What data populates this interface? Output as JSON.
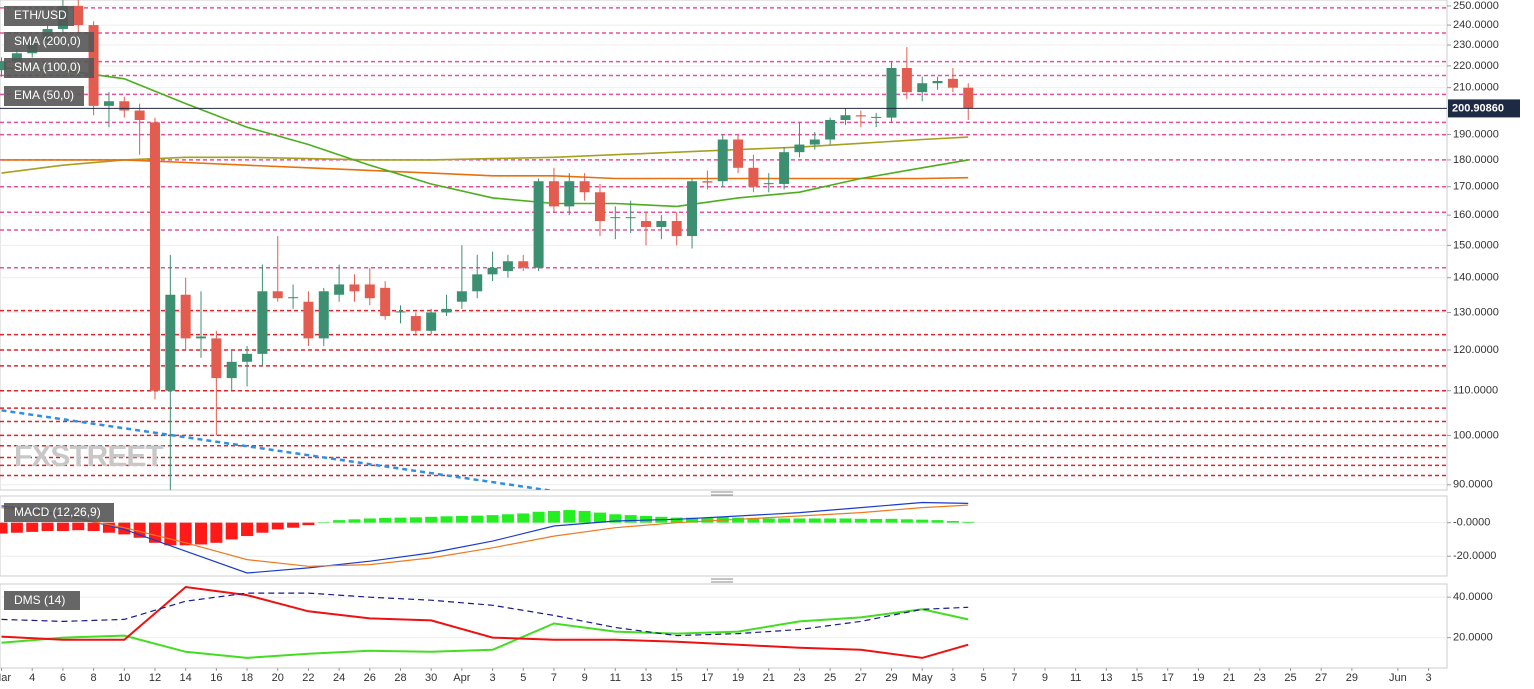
{
  "chart_data": [
    {
      "type": "candlestick",
      "title": "ETH/USD",
      "log_scale": true,
      "grid": true,
      "watermark": "FXSTREET",
      "xlim": [
        -0.1,
        94.2
      ],
      "ylim": [
        89,
        253.2
      ],
      "yticks": [
        {
          "value": 250,
          "label": "250.0000"
        },
        {
          "value": 240,
          "label": "240.0000"
        },
        {
          "value": 230,
          "label": "230.0000"
        },
        {
          "value": 220,
          "label": "220.0000"
        },
        {
          "value": 210,
          "label": "210.0000"
        },
        {
          "value": 190,
          "label": "190.0000"
        },
        {
          "value": 180,
          "label": "180.0000"
        },
        {
          "value": 170,
          "label": "170.0000"
        },
        {
          "value": 160,
          "label": "160.0000"
        },
        {
          "value": 150,
          "label": "150.0000"
        },
        {
          "value": 140,
          "label": "140.0000"
        },
        {
          "value": 130,
          "label": "130.0000"
        },
        {
          "value": 120,
          "label": "120.0000"
        },
        {
          "value": 110,
          "label": "110.0000"
        },
        {
          "value": 100,
          "label": "100.0000"
        },
        {
          "value": 90,
          "label": "90.0000"
        }
      ],
      "last": {
        "value": 200.9086,
        "label": "200.90860",
        "color": "#1e2a44"
      },
      "up_color": "#3d8f72",
      "down_color": "#e25d50",
      "x": [
        0,
        1,
        2,
        3,
        4,
        5,
        6,
        7,
        8,
        9,
        10,
        11,
        12,
        13,
        14,
        15,
        16,
        17,
        18,
        19,
        20,
        21,
        22,
        23,
        24,
        25,
        26,
        27,
        28,
        29,
        30,
        31,
        32,
        33,
        34,
        35,
        36,
        37,
        38,
        39,
        40,
        41,
        42,
        43,
        44,
        45,
        46,
        47,
        48,
        49,
        50,
        51,
        52,
        53,
        54,
        55,
        56,
        57,
        58,
        59,
        60,
        61,
        62,
        63
      ],
      "open": [
        218,
        222,
        226,
        232,
        238,
        250,
        240,
        202,
        204,
        200,
        195,
        110,
        135,
        123,
        123,
        113,
        117,
        119,
        136,
        134,
        133,
        123,
        135,
        138,
        138,
        137,
        130,
        129,
        125,
        130,
        133,
        136,
        141,
        142,
        145,
        143,
        172,
        163,
        172,
        168,
        159,
        159,
        158,
        156,
        158,
        153,
        172,
        172,
        188,
        177,
        171,
        171,
        183,
        186,
        188,
        196,
        198,
        197,
        197,
        219,
        208,
        212,
        214,
        210
      ],
      "high": [
        224,
        228,
        234,
        240,
        255,
        254,
        242,
        208,
        206,
        203,
        197,
        147,
        140,
        136,
        125,
        120,
        121,
        144,
        153,
        138,
        136,
        137,
        144,
        141,
        143,
        139,
        132,
        130,
        131,
        135,
        150,
        147,
        148,
        147,
        147,
        173,
        177,
        175,
        175,
        171,
        163,
        165,
        161,
        160,
        161,
        173,
        176,
        190,
        190,
        182,
        175,
        185,
        195,
        191,
        197,
        201,
        200,
        199,
        222,
        229,
        215,
        215,
        219,
        212
      ],
      "low": [
        215,
        219,
        224,
        229,
        235,
        236,
        198,
        193,
        197,
        182,
        108,
        89,
        120,
        118,
        100,
        110,
        111,
        116,
        133,
        131,
        121,
        121,
        133,
        133,
        132,
        128,
        127,
        124,
        124,
        129,
        131,
        134,
        139,
        140,
        142,
        142,
        161,
        160,
        165,
        153,
        152,
        154,
        150,
        152,
        150,
        149,
        169,
        170,
        175,
        168,
        168,
        169,
        181,
        184,
        186,
        194,
        193,
        193,
        195,
        205,
        204,
        209,
        208,
        196
      ],
      "close": [
        222,
        226,
        232,
        238,
        250,
        240,
        202,
        204,
        200,
        196,
        110,
        135,
        123,
        123.5,
        113,
        117,
        119,
        136,
        134,
        134.3,
        123,
        136,
        138,
        136,
        134,
        129,
        130.3,
        125,
        130,
        131,
        136,
        141,
        143,
        145,
        143,
        172,
        163,
        172,
        168,
        158,
        159.3,
        159.3,
        156,
        158,
        153,
        172,
        171.5,
        188,
        177,
        170,
        171.3,
        183,
        186,
        188,
        196,
        198,
        197.5,
        197.3,
        219,
        208,
        212,
        213,
        210,
        200.9
      ],
      "series": [
        {
          "name": "SMA (200,0)",
          "color": "#a6a020",
          "x": [
            0,
            4,
            8,
            12,
            16,
            20,
            24,
            28,
            32,
            36,
            40,
            44,
            48,
            52,
            56,
            60,
            63
          ],
          "values": [
            175,
            178,
            180,
            181,
            181,
            180.5,
            180,
            180,
            180.5,
            181,
            182,
            183,
            184,
            185,
            186.5,
            188,
            189
          ]
        },
        {
          "name": "SMA (100,0)",
          "color": "#e8700e",
          "x": [
            0,
            4,
            8,
            12,
            16,
            20,
            24,
            28,
            32,
            36,
            40,
            44,
            48,
            52,
            56,
            60,
            63
          ],
          "values": [
            180,
            180,
            180,
            179,
            178,
            177,
            176,
            175,
            174,
            174,
            173,
            173,
            173,
            173,
            173,
            173,
            173.3
          ]
        },
        {
          "name": "EMA (50,0)",
          "color": "#4cae1e",
          "x": [
            0,
            4,
            8,
            12,
            16,
            20,
            24,
            28,
            32,
            36,
            40,
            44,
            48,
            52,
            56,
            60,
            63
          ],
          "values": [
            219,
            218,
            214,
            203,
            193,
            186,
            178,
            171,
            166,
            164,
            164,
            163,
            166,
            168,
            173,
            177,
            180
          ]
        }
      ],
      "trendline": {
        "color": "#2f8fe0",
        "x": [
          0,
          36
        ],
        "values": [
          105.5,
          88.8
        ]
      },
      "levels": [
        {
          "value": 249,
          "color": "#e8509c"
        },
        {
          "value": 236,
          "color": "#e8509c"
        },
        {
          "value": 222,
          "color": "#e8509c"
        },
        {
          "value": 215.5,
          "color": "#e8509c"
        },
        {
          "value": 207,
          "color": "#e8509c"
        },
        {
          "value": 195,
          "color": "#e8509c"
        },
        {
          "value": 190,
          "color": "#e8509c"
        },
        {
          "value": 180,
          "color": "#e8509c"
        },
        {
          "value": 170,
          "color": "#e8509c"
        },
        {
          "value": 161,
          "color": "#e8509c"
        },
        {
          "value": 155,
          "color": "#e8509c"
        },
        {
          "value": 143,
          "color": "#e8509c"
        },
        {
          "value": 130.5,
          "color": "#e0242a"
        },
        {
          "value": 124,
          "color": "#e0242a"
        },
        {
          "value": 120,
          "color": "#e0242a"
        },
        {
          "value": 116,
          "color": "#e0242a"
        },
        {
          "value": 110,
          "color": "#e0242a"
        },
        {
          "value": 106,
          "color": "#e0242a"
        },
        {
          "value": 103,
          "color": "#e0242a"
        },
        {
          "value": 100,
          "color": "#e0242a"
        },
        {
          "value": 97.8,
          "color": "#e0242a"
        },
        {
          "value": 95.4,
          "color": "#e0242a"
        },
        {
          "value": 93.8,
          "color": "#e0242a"
        },
        {
          "value": 91.8,
          "color": "#e0242a"
        }
      ]
    },
    {
      "type": "macd",
      "title": "MACD (12,26,9)",
      "xlim": [
        -0.1,
        94.2
      ],
      "ylim": [
        -31.8,
        15.9
      ],
      "grid": true,
      "yticks": [
        {
          "value": 0,
          "label": "-0.0000"
        },
        {
          "value": -20,
          "label": "-20.0000"
        }
      ],
      "histogram": {
        "up_color": "#22ee22",
        "down_color": "#ff1a1a",
        "x": [
          0,
          1,
          2,
          3,
          4,
          5,
          6,
          7,
          8,
          9,
          10,
          11,
          12,
          13,
          14,
          15,
          16,
          17,
          18,
          19,
          20,
          21,
          22,
          23,
          24,
          25,
          26,
          27,
          28,
          29,
          30,
          31,
          32,
          33,
          34,
          35,
          36,
          37,
          38,
          39,
          40,
          41,
          42,
          43,
          44,
          45,
          46,
          47,
          48,
          49,
          50,
          51,
          52,
          53,
          54,
          55,
          56,
          57,
          58,
          59,
          60,
          61,
          62,
          63
        ],
        "values": [
          -6.5,
          -6,
          -5.5,
          -5,
          -5,
          -4.5,
          -5,
          -6,
          -7,
          -9,
          -12,
          -13.5,
          -13.5,
          -13,
          -12,
          -10,
          -8,
          -6,
          -4,
          -3,
          -1.5,
          0.3,
          1.5,
          2,
          2.5,
          2.8,
          3,
          3.2,
          3.5,
          3.8,
          4,
          4.2,
          4.5,
          5,
          5.5,
          6.5,
          7,
          7.5,
          7,
          6,
          5,
          4.5,
          4,
          3.5,
          3,
          3,
          3,
          3.3,
          3,
          2.8,
          2.5,
          2.5,
          2.5,
          2.5,
          2.5,
          2.5,
          2.3,
          2.2,
          2.3,
          2,
          1.8,
          1.5,
          1,
          0.5
        ]
      },
      "series": [
        {
          "color": "#1a3ccc",
          "x": [
            0,
            4,
            8,
            12,
            16,
            20,
            24,
            28,
            32,
            36,
            40,
            44,
            48,
            52,
            56,
            60,
            63
          ],
          "values": [
            10,
            5,
            -4,
            -17,
            -30,
            -27,
            -23,
            -18,
            -11,
            -2,
            1,
            2,
            4,
            6,
            9,
            12,
            11.5
          ]
        },
        {
          "color": "#ee7a22",
          "x": [
            0,
            4,
            8,
            12,
            16,
            20,
            24,
            28,
            32,
            36,
            40,
            44,
            48,
            52,
            56,
            60,
            63
          ],
          "values": [
            9,
            4,
            -3,
            -12,
            -22,
            -26,
            -25,
            -21,
            -15,
            -8,
            -3,
            0,
            2,
            4,
            6,
            9,
            10.5
          ]
        }
      ]
    },
    {
      "type": "line",
      "title": "DMS (14)",
      "xlim": [
        -0.1,
        94.2
      ],
      "ylim": [
        5,
        46.5
      ],
      "grid": true,
      "yticks": [
        {
          "value": 40,
          "label": "40.0000"
        },
        {
          "value": 20,
          "label": "20.0000"
        }
      ],
      "xticks": [
        {
          "value": 0,
          "label": "Mar"
        },
        {
          "value": 2,
          "label": "4"
        },
        {
          "value": 4,
          "label": "6"
        },
        {
          "value": 6,
          "label": "8"
        },
        {
          "value": 8,
          "label": "10"
        },
        {
          "value": 10,
          "label": "12"
        },
        {
          "value": 12,
          "label": "14"
        },
        {
          "value": 14,
          "label": "16"
        },
        {
          "value": 16,
          "label": "18"
        },
        {
          "value": 18,
          "label": "20"
        },
        {
          "value": 20,
          "label": "22"
        },
        {
          "value": 22,
          "label": "24"
        },
        {
          "value": 24,
          "label": "26"
        },
        {
          "value": 26,
          "label": "28"
        },
        {
          "value": 28,
          "label": "30"
        },
        {
          "value": 30,
          "label": "Apr"
        },
        {
          "value": 32,
          "label": "3"
        },
        {
          "value": 34,
          "label": "5"
        },
        {
          "value": 36,
          "label": "7"
        },
        {
          "value": 38,
          "label": "9"
        },
        {
          "value": 40,
          "label": "11"
        },
        {
          "value": 42,
          "label": "13"
        },
        {
          "value": 44,
          "label": "15"
        },
        {
          "value": 46,
          "label": "17"
        },
        {
          "value": 48,
          "label": "19"
        },
        {
          "value": 50,
          "label": "21"
        },
        {
          "value": 52,
          "label": "23"
        },
        {
          "value": 54,
          "label": "25"
        },
        {
          "value": 56,
          "label": "27"
        },
        {
          "value": 58,
          "label": "29"
        },
        {
          "value": 60,
          "label": "May"
        },
        {
          "value": 62,
          "label": "3"
        },
        {
          "value": 64,
          "label": "5"
        },
        {
          "value": 66,
          "label": "7"
        },
        {
          "value": 68,
          "label": "9"
        },
        {
          "value": 70,
          "label": "11"
        },
        {
          "value": 72,
          "label": "13"
        },
        {
          "value": 74,
          "label": "15"
        },
        {
          "value": 76,
          "label": "17"
        },
        {
          "value": 78,
          "label": "19"
        },
        {
          "value": 80,
          "label": "21"
        },
        {
          "value": 82,
          "label": "23"
        },
        {
          "value": 84,
          "label": "25"
        },
        {
          "value": 86,
          "label": "27"
        },
        {
          "value": 88,
          "label": "29"
        },
        {
          "value": 91,
          "label": "Jun"
        },
        {
          "value": 93,
          "label": "3"
        }
      ],
      "series": [
        {
          "color": "#44dd22",
          "x": [
            0,
            4,
            8,
            12,
            16,
            20,
            24,
            28,
            32,
            36,
            40,
            44,
            48,
            52,
            56,
            60,
            63
          ],
          "values": [
            17.5,
            20,
            21,
            13,
            10,
            12,
            13.5,
            13,
            14,
            27,
            23,
            22,
            23,
            28,
            30,
            34,
            29
          ]
        },
        {
          "color": "#ee1111",
          "x": [
            0,
            4,
            8,
            12,
            16,
            20,
            24,
            28,
            32,
            36,
            40,
            44,
            48,
            52,
            56,
            60,
            63
          ],
          "values": [
            20.5,
            19,
            19,
            45,
            41,
            33,
            29.5,
            28.5,
            20,
            19,
            19,
            18,
            16.5,
            15,
            14,
            10,
            16.5
          ]
        },
        {
          "color": "#1a1a88",
          "dash": true,
          "x": [
            0,
            4,
            8,
            12,
            16,
            20,
            24,
            28,
            32,
            36,
            40,
            44,
            48,
            52,
            56,
            60,
            63
          ],
          "values": [
            29,
            28,
            29,
            38,
            42,
            42,
            40,
            38.5,
            36,
            31,
            25,
            21,
            22,
            24,
            28,
            34,
            35
          ]
        }
      ]
    }
  ]
}
